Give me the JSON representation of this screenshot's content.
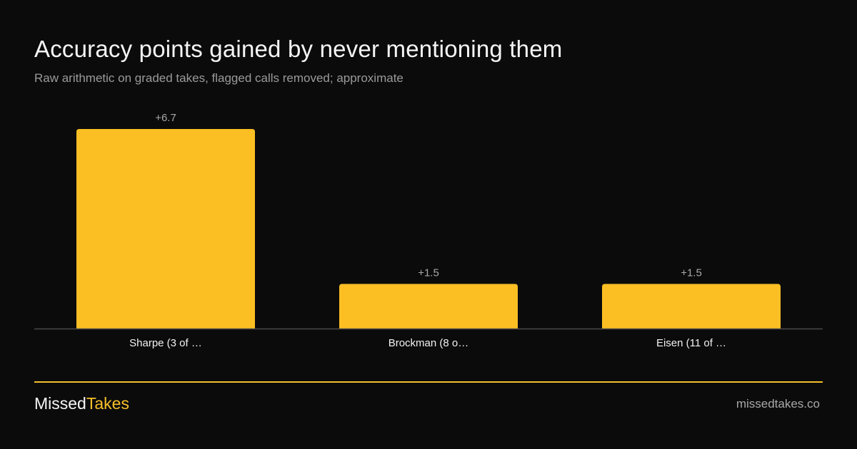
{
  "header": {
    "title": "Accuracy points gained by never mentioning them",
    "subtitle": "Raw arithmetic on graded takes, flagged calls removed; approximate"
  },
  "chart_data": {
    "type": "bar",
    "categories": [
      "Sharpe (3 of …",
      "Brockman (8 o…",
      "Eisen (11 of …"
    ],
    "values": [
      6.7,
      1.5,
      1.5
    ],
    "value_labels": [
      "+6.7",
      "+1.5",
      "+1.5"
    ],
    "title": "Accuracy points gained by never mentioning them",
    "subtitle": "Raw arithmetic on graded takes, flagged calls removed; approximate",
    "xlabel": "",
    "ylabel": "",
    "ylim": [
      0,
      6.7
    ],
    "grid": false,
    "legend": "none",
    "colors": {
      "bar": "#fbbf24",
      "baseline": "#4a4a4a",
      "value_label": "#a8a8a8",
      "tick_label": "#f2f2f2"
    }
  },
  "footer": {
    "brand_part1": "Missed",
    "brand_part2": "Takes",
    "site": "missedtakes.co",
    "accent": "#f7bf2a"
  }
}
